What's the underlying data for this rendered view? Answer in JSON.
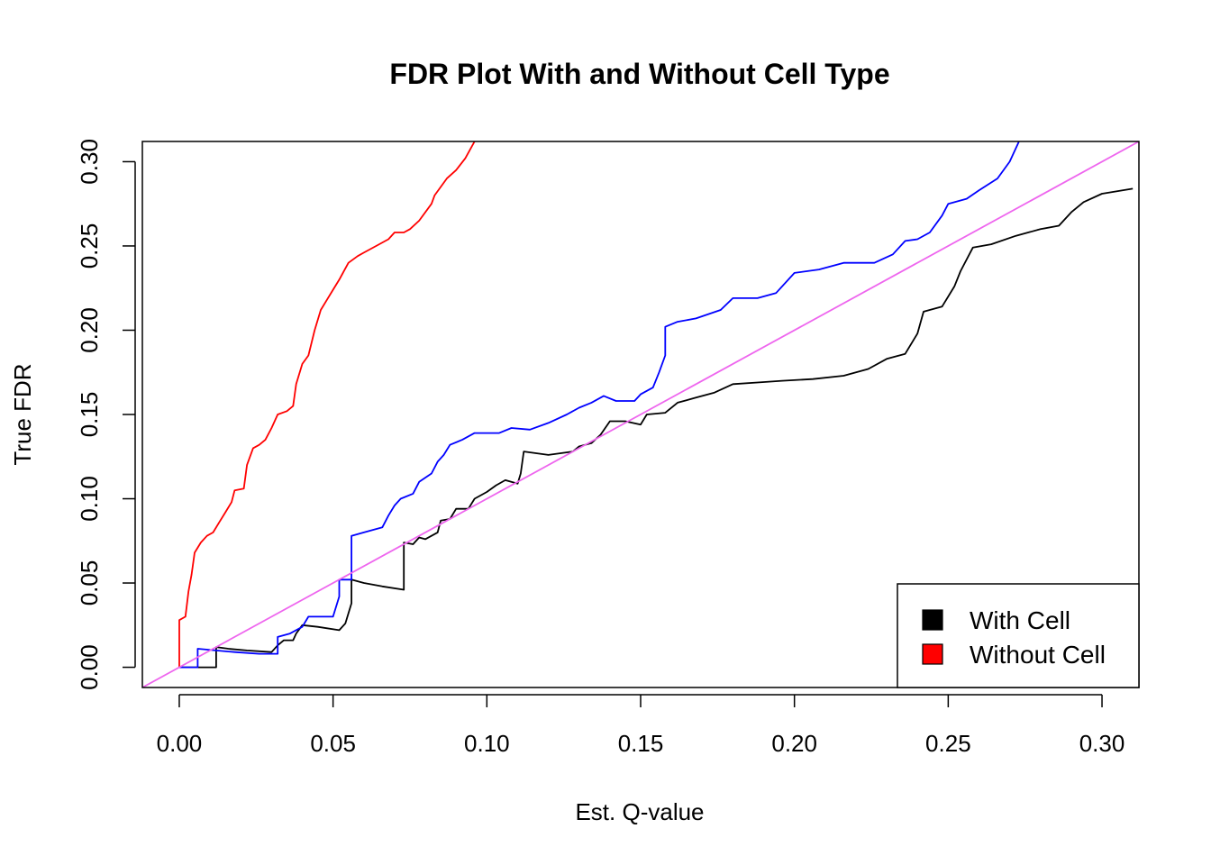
{
  "chart_data": {
    "type": "line",
    "title": "FDR Plot With and Without Cell Type",
    "xlabel": "Est. Q-value",
    "ylabel": "True FDR",
    "xlim": [
      -0.012,
      0.312
    ],
    "ylim": [
      -0.012,
      0.312
    ],
    "x_ticks": [
      "0.00",
      "0.05",
      "0.10",
      "0.15",
      "0.20",
      "0.25",
      "0.30"
    ],
    "y_ticks": [
      "0.00",
      "0.05",
      "0.10",
      "0.15",
      "0.20",
      "0.25",
      "0.30"
    ],
    "grid": false,
    "legend": {
      "position": "bottom-right",
      "entries": [
        {
          "label": "With Cell",
          "color": "#000000"
        },
        {
          "label": "Without Cell",
          "color": "#ff0000"
        }
      ]
    },
    "series": [
      {
        "color": "#000000",
        "points": [
          [
            0.0,
            0.0
          ],
          [
            0.012,
            0.0
          ],
          [
            0.012,
            0.012
          ],
          [
            0.016,
            0.011
          ],
          [
            0.022,
            0.01
          ],
          [
            0.03,
            0.009
          ],
          [
            0.032,
            0.013
          ],
          [
            0.034,
            0.016
          ],
          [
            0.037,
            0.016
          ],
          [
            0.038,
            0.02
          ],
          [
            0.04,
            0.025
          ],
          [
            0.045,
            0.024
          ],
          [
            0.052,
            0.022
          ],
          [
            0.054,
            0.026
          ],
          [
            0.056,
            0.038
          ],
          [
            0.056,
            0.052
          ],
          [
            0.06,
            0.05
          ],
          [
            0.066,
            0.048
          ],
          [
            0.073,
            0.046
          ],
          [
            0.073,
            0.074
          ],
          [
            0.076,
            0.073
          ],
          [
            0.078,
            0.077
          ],
          [
            0.08,
            0.076
          ],
          [
            0.084,
            0.08
          ],
          [
            0.085,
            0.087
          ],
          [
            0.088,
            0.088
          ],
          [
            0.09,
            0.094
          ],
          [
            0.094,
            0.094
          ],
          [
            0.096,
            0.1
          ],
          [
            0.1,
            0.104
          ],
          [
            0.103,
            0.108
          ],
          [
            0.106,
            0.111
          ],
          [
            0.11,
            0.109
          ],
          [
            0.111,
            0.115
          ],
          [
            0.112,
            0.128
          ],
          [
            0.12,
            0.126
          ],
          [
            0.128,
            0.128
          ],
          [
            0.13,
            0.131
          ],
          [
            0.134,
            0.133
          ],
          [
            0.137,
            0.138
          ],
          [
            0.14,
            0.146
          ],
          [
            0.145,
            0.146
          ],
          [
            0.15,
            0.144
          ],
          [
            0.152,
            0.15
          ],
          [
            0.158,
            0.151
          ],
          [
            0.162,
            0.157
          ],
          [
            0.168,
            0.16
          ],
          [
            0.174,
            0.163
          ],
          [
            0.18,
            0.168
          ],
          [
            0.188,
            0.169
          ],
          [
            0.196,
            0.17
          ],
          [
            0.206,
            0.171
          ],
          [
            0.216,
            0.173
          ],
          [
            0.224,
            0.177
          ],
          [
            0.23,
            0.183
          ],
          [
            0.236,
            0.186
          ],
          [
            0.24,
            0.198
          ],
          [
            0.242,
            0.211
          ],
          [
            0.248,
            0.214
          ],
          [
            0.252,
            0.226
          ],
          [
            0.254,
            0.235
          ],
          [
            0.258,
            0.249
          ],
          [
            0.264,
            0.251
          ],
          [
            0.272,
            0.256
          ],
          [
            0.28,
            0.26
          ],
          [
            0.286,
            0.262
          ],
          [
            0.29,
            0.27
          ],
          [
            0.294,
            0.276
          ],
          [
            0.3,
            0.281
          ],
          [
            0.31,
            0.284
          ]
        ]
      },
      {
        "color": "#ff0000",
        "points": [
          [
            0.0,
            0.0
          ],
          [
            0.0,
            0.028
          ],
          [
            0.002,
            0.03
          ],
          [
            0.003,
            0.045
          ],
          [
            0.004,
            0.055
          ],
          [
            0.005,
            0.068
          ],
          [
            0.007,
            0.074
          ],
          [
            0.009,
            0.078
          ],
          [
            0.011,
            0.08
          ],
          [
            0.013,
            0.086
          ],
          [
            0.015,
            0.092
          ],
          [
            0.017,
            0.098
          ],
          [
            0.018,
            0.105
          ],
          [
            0.021,
            0.106
          ],
          [
            0.022,
            0.12
          ],
          [
            0.024,
            0.13
          ],
          [
            0.026,
            0.132
          ],
          [
            0.028,
            0.135
          ],
          [
            0.03,
            0.142
          ],
          [
            0.032,
            0.15
          ],
          [
            0.035,
            0.152
          ],
          [
            0.037,
            0.155
          ],
          [
            0.038,
            0.168
          ],
          [
            0.04,
            0.18
          ],
          [
            0.042,
            0.185
          ],
          [
            0.044,
            0.2
          ],
          [
            0.046,
            0.212
          ],
          [
            0.048,
            0.218
          ],
          [
            0.05,
            0.224
          ],
          [
            0.052,
            0.23
          ],
          [
            0.055,
            0.24
          ],
          [
            0.058,
            0.244
          ],
          [
            0.06,
            0.246
          ],
          [
            0.064,
            0.25
          ],
          [
            0.068,
            0.254
          ],
          [
            0.07,
            0.258
          ],
          [
            0.073,
            0.258
          ],
          [
            0.075,
            0.26
          ],
          [
            0.078,
            0.265
          ],
          [
            0.082,
            0.275
          ],
          [
            0.083,
            0.28
          ],
          [
            0.087,
            0.29
          ],
          [
            0.09,
            0.295
          ],
          [
            0.093,
            0.302
          ],
          [
            0.096,
            0.312
          ]
        ]
      },
      {
        "color": "#0000ff",
        "points": [
          [
            0.0,
            0.0
          ],
          [
            0.006,
            0.0
          ],
          [
            0.006,
            0.011
          ],
          [
            0.012,
            0.01
          ],
          [
            0.018,
            0.009
          ],
          [
            0.026,
            0.008
          ],
          [
            0.032,
            0.008
          ],
          [
            0.032,
            0.018
          ],
          [
            0.036,
            0.02
          ],
          [
            0.04,
            0.024
          ],
          [
            0.042,
            0.03
          ],
          [
            0.05,
            0.03
          ],
          [
            0.052,
            0.042
          ],
          [
            0.052,
            0.052
          ],
          [
            0.056,
            0.052
          ],
          [
            0.056,
            0.078
          ],
          [
            0.06,
            0.08
          ],
          [
            0.066,
            0.083
          ],
          [
            0.068,
            0.09
          ],
          [
            0.07,
            0.096
          ],
          [
            0.072,
            0.1
          ],
          [
            0.076,
            0.103
          ],
          [
            0.078,
            0.11
          ],
          [
            0.082,
            0.115
          ],
          [
            0.084,
            0.122
          ],
          [
            0.086,
            0.126
          ],
          [
            0.088,
            0.132
          ],
          [
            0.092,
            0.135
          ],
          [
            0.096,
            0.139
          ],
          [
            0.104,
            0.139
          ],
          [
            0.108,
            0.142
          ],
          [
            0.114,
            0.141
          ],
          [
            0.12,
            0.145
          ],
          [
            0.126,
            0.15
          ],
          [
            0.13,
            0.154
          ],
          [
            0.134,
            0.157
          ],
          [
            0.138,
            0.161
          ],
          [
            0.142,
            0.158
          ],
          [
            0.148,
            0.158
          ],
          [
            0.15,
            0.162
          ],
          [
            0.154,
            0.166
          ],
          [
            0.156,
            0.175
          ],
          [
            0.158,
            0.185
          ],
          [
            0.158,
            0.202
          ],
          [
            0.162,
            0.205
          ],
          [
            0.168,
            0.207
          ],
          [
            0.176,
            0.212
          ],
          [
            0.18,
            0.219
          ],
          [
            0.188,
            0.219
          ],
          [
            0.194,
            0.222
          ],
          [
            0.2,
            0.234
          ],
          [
            0.208,
            0.236
          ],
          [
            0.216,
            0.24
          ],
          [
            0.226,
            0.24
          ],
          [
            0.232,
            0.245
          ],
          [
            0.236,
            0.253
          ],
          [
            0.24,
            0.254
          ],
          [
            0.244,
            0.258
          ],
          [
            0.248,
            0.268
          ],
          [
            0.25,
            0.275
          ],
          [
            0.256,
            0.278
          ],
          [
            0.26,
            0.283
          ],
          [
            0.266,
            0.29
          ],
          [
            0.27,
            0.3
          ],
          [
            0.273,
            0.312
          ]
        ]
      },
      {
        "color": "#ee66ee",
        "points": [
          [
            -0.012,
            -0.012
          ],
          [
            0.312,
            0.312
          ]
        ]
      }
    ]
  }
}
